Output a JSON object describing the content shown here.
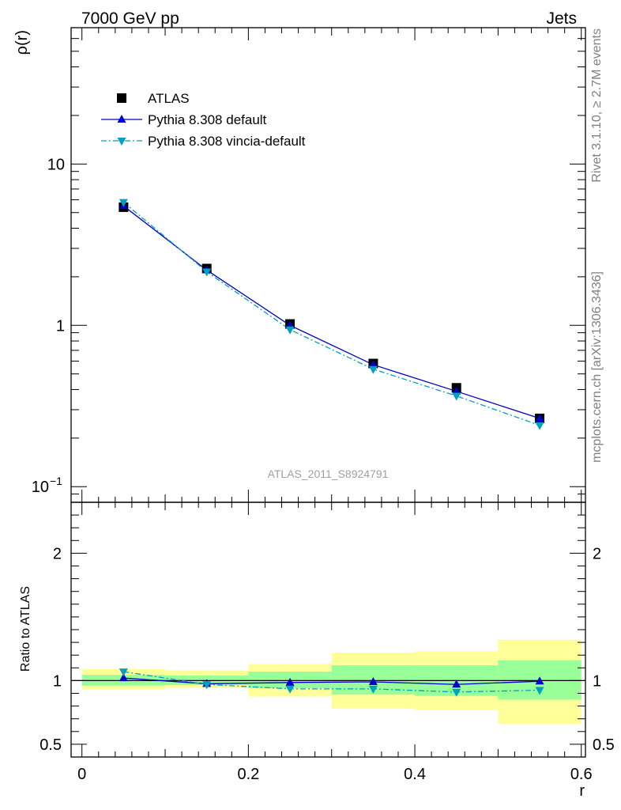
{
  "header": {
    "left": "7000 GeV pp",
    "right": "Jets"
  },
  "side_labels": {
    "rivet": "Rivet 3.1.10, ≥ 2.7M events",
    "mcplots": "mcplots.cern.ch [arXiv:1306.3436]"
  },
  "analysis_id": "ATLAS_2011_S8924791",
  "colors": {
    "data": "#000000",
    "pythia_default": "#0000cc",
    "pythia_vincia": "#00a0c0",
    "band_outer": "#ffff99",
    "band_inner": "#99ff99"
  },
  "chart_data": [
    {
      "type": "scatter",
      "panel": "main",
      "ylabel": "ρ(r)",
      "yscale": "log",
      "ylim": [
        0.08,
        70
      ],
      "xlim": [
        -0.013,
        0.605
      ],
      "y_ticks": [
        {
          "value": 10,
          "label": "10"
        },
        {
          "value": 1,
          "label": "1"
        },
        {
          "value": 0.1,
          "label": "10",
          "sup": "−1"
        }
      ],
      "legend_position": "top-left",
      "x": [
        0.05,
        0.15,
        0.25,
        0.35,
        0.45,
        0.55
      ],
      "series": [
        {
          "name": "ATLAS",
          "marker": "square",
          "values": [
            5.4,
            2.25,
            1.02,
            0.58,
            0.41,
            0.265
          ]
        },
        {
          "name": "Pythia 8.308 default",
          "marker": "triangle-up",
          "line": "solid",
          "values": [
            5.5,
            2.2,
            1.0,
            0.57,
            0.39,
            0.265
          ]
        },
        {
          "name": "Pythia 8.308 vincia-default",
          "marker": "triangle-down",
          "line": "dashdot",
          "values": [
            5.8,
            2.15,
            0.94,
            0.535,
            0.365,
            0.24
          ]
        }
      ]
    },
    {
      "type": "line",
      "panel": "ratio",
      "ylabel": "Ratio to ATLAS",
      "xlabel": "r",
      "ylim": [
        0.4,
        2.4
      ],
      "xlim": [
        -0.013,
        0.605
      ],
      "y_ticks": [
        {
          "value": 2,
          "label": "2"
        },
        {
          "value": 1,
          "label": "1"
        },
        {
          "value": 0.5,
          "label": "0.5"
        }
      ],
      "x_ticks": [
        {
          "value": 0,
          "label": "0"
        },
        {
          "value": 0.2,
          "label": "0.2"
        },
        {
          "value": 0.4,
          "label": "0.4"
        },
        {
          "value": 0.6,
          "label": "0.6"
        }
      ],
      "bins": [
        [
          0,
          0.1
        ],
        [
          0.1,
          0.2
        ],
        [
          0.2,
          0.3
        ],
        [
          0.3,
          0.4
        ],
        [
          0.4,
          0.5
        ],
        [
          0.5,
          0.6
        ]
      ],
      "band_outer": [
        [
          0.93,
          1.09
        ],
        [
          0.945,
          1.08
        ],
        [
          0.875,
          1.13
        ],
        [
          0.78,
          1.22
        ],
        [
          0.77,
          1.23
        ],
        [
          0.66,
          1.32
        ]
      ],
      "band_inner": [
        [
          0.96,
          1.045
        ],
        [
          0.965,
          1.04
        ],
        [
          0.94,
          1.07
        ],
        [
          0.89,
          1.12
        ],
        [
          0.88,
          1.12
        ],
        [
          0.85,
          1.16
        ]
      ],
      "x": [
        0.05,
        0.15,
        0.25,
        0.35,
        0.45,
        0.55
      ],
      "series": [
        {
          "name": "Pythia 8.308 default",
          "marker": "triangle-up",
          "line": "solid",
          "values": [
            1.02,
            0.975,
            0.985,
            0.99,
            0.97,
            0.995
          ]
        },
        {
          "name": "Pythia 8.308 vincia-default",
          "marker": "triangle-down",
          "line": "dashdot",
          "values": [
            1.07,
            0.97,
            0.935,
            0.935,
            0.91,
            0.925
          ]
        }
      ]
    }
  ]
}
